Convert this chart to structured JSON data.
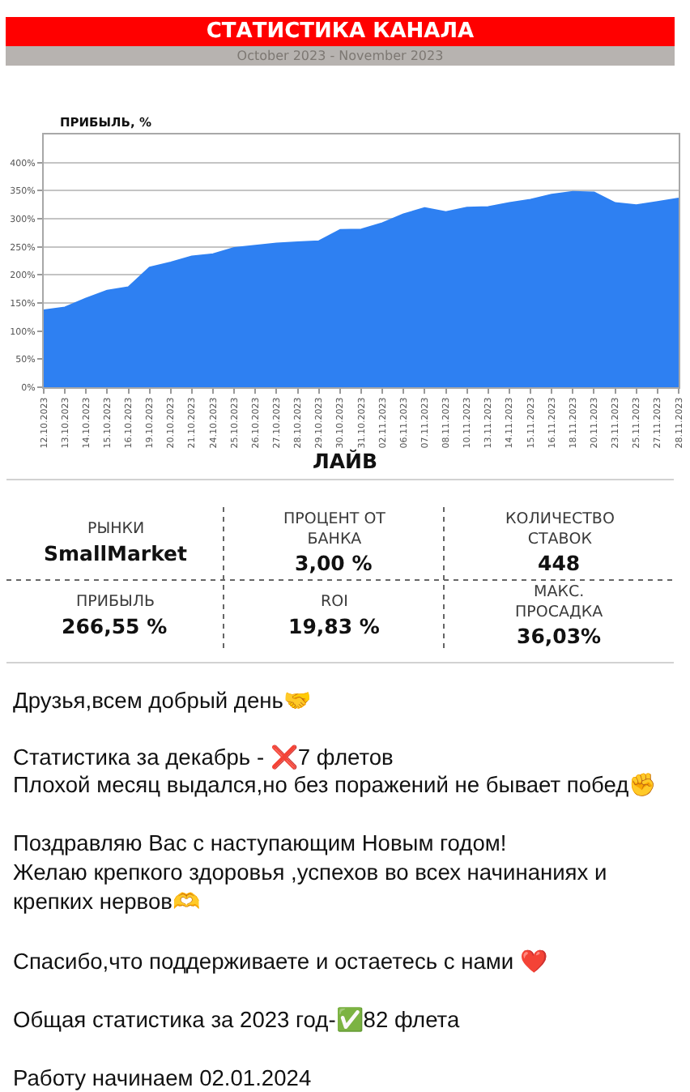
{
  "chart_data": {
    "type": "area",
    "title": "СТАТИСТИКА КАНАЛА",
    "subtitle": "October 2023 - November 2023",
    "ylabel": "ПРИБЫЛЬ, %",
    "xlabel": "ЛАЙВ",
    "categories": [
      "12.10.2023",
      "13.10.2023",
      "14.10.2023",
      "15.10.2023",
      "16.10.2023",
      "19.10.2023",
      "20.10.2023",
      "21.10.2023",
      "24.10.2023",
      "25.10.2023",
      "26.10.2023",
      "27.10.2023",
      "28.10.2023",
      "29.10.2023",
      "30.10.2023",
      "31.10.2023",
      "02.11.2023",
      "06.11.2023",
      "07.11.2023",
      "08.11.2023",
      "10.11.2023",
      "13.11.2023",
      "14.11.2023",
      "15.11.2023",
      "16.11.2023",
      "18.11.2023",
      "20.11.2023",
      "23.11.2023",
      "25.11.2023",
      "27.11.2023",
      "28.11.2023"
    ],
    "series": [
      {
        "color": "#2e80f2",
        "values": [
          137,
          142,
          158,
          172,
          178,
          213,
          222,
          233,
          237,
          248,
          252,
          256,
          258,
          260,
          280,
          281,
          292,
          308,
          319,
          312,
          320,
          321,
          328,
          334,
          343,
          348,
          347,
          328,
          324,
          330,
          336
        ]
      }
    ],
    "ylim": [
      0,
      450
    ],
    "yticks": [
      {
        "value": 0,
        "label": "0%"
      },
      {
        "value": 50,
        "label": "50%"
      },
      {
        "value": 100,
        "label": "100%"
      },
      {
        "value": 150,
        "label": "150%"
      },
      {
        "value": 200,
        "label": "200%"
      },
      {
        "value": 250,
        "label": "250%"
      },
      {
        "value": 300,
        "label": "300%"
      },
      {
        "value": 350,
        "label": "350%"
      },
      {
        "value": 400,
        "label": "400%"
      }
    ],
    "grid": "y",
    "annotations": [
      "РЫНКИ",
      "SmallMarket",
      "ПРОЦЕНТ ОТ\nБАНКА",
      "3,00 %",
      "КОЛИЧЕСТВО\nСТАВОК",
      "448",
      "ПРИБЫЛЬ",
      "266,55 %",
      "ROI",
      "19,83 %",
      "МАКС.\nПРОСАДКА",
      "36,03%",
      "Друзья,всем добрый день🤝",
      "Статистика за декабрь - ❌7 флетов",
      "Плохой месяц выдался,но без поражений не бывает побед✊",
      "Поздравляю Вас с наступающим Новым годом!",
      "Желаю крепкого здоровья ,успехов во всех начинаниях и",
      "крепких нервов🫶",
      "Спасибо,что поддерживаете и остаетесь с нами ❤️",
      "Общая статистика за 2023 год-✅82 флета",
      "Работу начинаем 02.01.2024"
    ]
  }
}
